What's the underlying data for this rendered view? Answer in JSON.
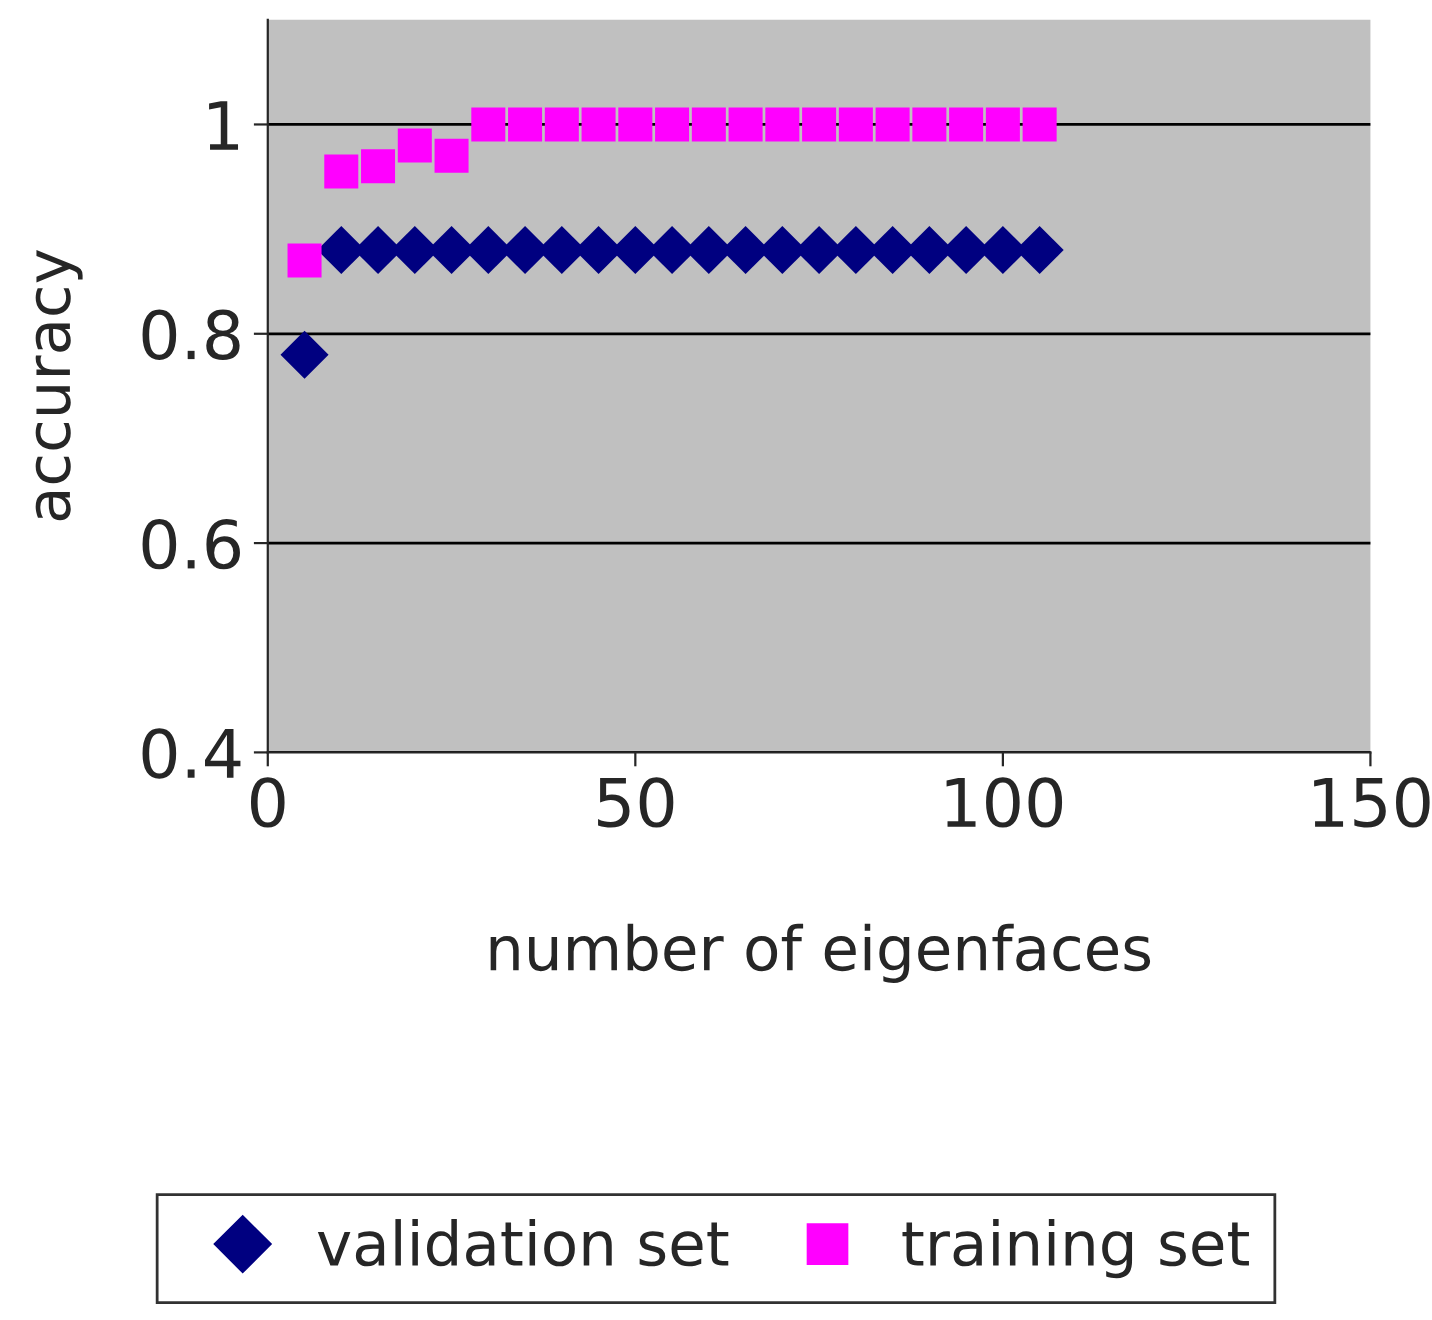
{
  "chart_data": {
    "type": "scatter",
    "xlabel": "number of eigenfaces",
    "ylabel": "accuracy",
    "x": [
      5,
      10,
      15,
      20,
      25,
      30,
      35,
      40,
      45,
      50,
      55,
      60,
      65,
      70,
      75,
      80,
      85,
      90,
      95,
      100,
      105
    ],
    "series": [
      {
        "name": "validation set",
        "color": "#000080",
        "marker": "diamond",
        "values": [
          0.78,
          0.88,
          0.88,
          0.88,
          0.88,
          0.88,
          0.88,
          0.88,
          0.88,
          0.88,
          0.88,
          0.88,
          0.88,
          0.88,
          0.88,
          0.88,
          0.88,
          0.88,
          0.88,
          0.88,
          0.88
        ]
      },
      {
        "name": "training set",
        "color": "#ff00ff",
        "marker": "square",
        "values": [
          0.87,
          0.955,
          0.96,
          0.98,
          0.97,
          1.0,
          1.0,
          1.0,
          1.0,
          1.0,
          1.0,
          1.0,
          1.0,
          1.0,
          1.0,
          1.0,
          1.0,
          1.0,
          1.0,
          1.0,
          1.0
        ]
      }
    ],
    "xlim": [
      0,
      150
    ],
    "xticks": [
      0,
      50,
      100,
      150
    ],
    "ylim": [
      0.4,
      1.1
    ],
    "yticks": [
      0.4,
      0.6,
      0.8,
      1
    ],
    "grid": "y",
    "legend": "bottom"
  }
}
